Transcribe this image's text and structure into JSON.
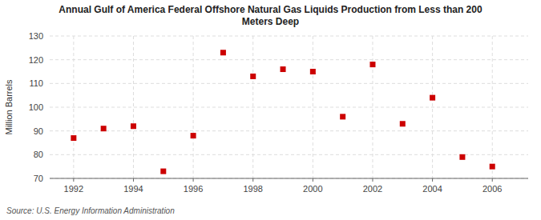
{
  "chart_data": {
    "type": "scatter",
    "title": "Annual Gulf of America Federal Offshore Natural Gas Liquids Production from Less than 200\nMeters Deep",
    "ylabel": "Million Barrels",
    "source": "Source: U.S. Energy Information Administration",
    "x": [
      1992,
      1993,
      1994,
      1995,
      1996,
      1997,
      1998,
      1999,
      2000,
      2001,
      2002,
      2003,
      2004,
      2005,
      2006
    ],
    "values": [
      87,
      91,
      92,
      73,
      88,
      123,
      113,
      116,
      115,
      96,
      118,
      93,
      104,
      79,
      75
    ],
    "color": "#cc0000",
    "marker": "square",
    "xlim": [
      1991.2,
      2007.2
    ],
    "ylim": [
      70,
      130
    ],
    "xticks": [
      1992,
      1994,
      1996,
      1998,
      2000,
      2002,
      2004,
      2006
    ],
    "yticks": [
      70,
      80,
      90,
      100,
      110,
      120,
      130
    ],
    "grid": true
  }
}
